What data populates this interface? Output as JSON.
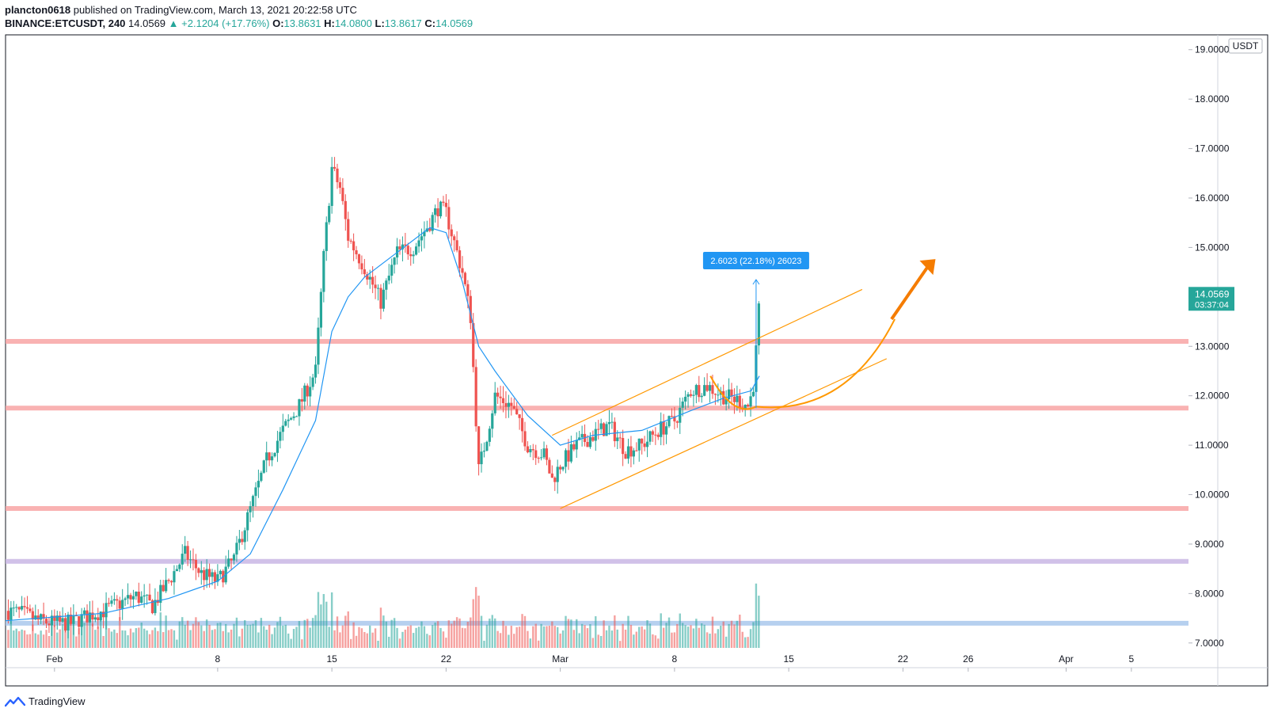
{
  "header": {
    "author": "plancton0618",
    "published_text": "published on TradingView.com, March 13, 2021 20:22:58 UTC",
    "symbol": "BINANCE:ETCUSDT, 240",
    "last": "14.0569",
    "change": "▲ +2.1204 (+17.76%)",
    "o_label": "O:",
    "o_value": "13.8631",
    "h_label": "H:",
    "h_value": "14.0800",
    "l_label": "L:",
    "l_value": "13.8617",
    "c_label": "C:",
    "c_value": "14.0569"
  },
  "colors": {
    "up": "#26a69a",
    "down": "#ef5350",
    "ma": "#2196f3",
    "channel": "#ff9800",
    "level": "#f8a5a5",
    "grid": "#e0e3eb"
  },
  "price_axis": {
    "currency": "USDT",
    "last_price": "14.0569",
    "countdown": "03:37:04"
  },
  "measure_label": "2.6023 (22.18%) 26023",
  "brand": "TradingView",
  "chart_data": {
    "type": "candlestick",
    "title": "",
    "ylim": [
      6.5,
      19.3
    ],
    "y_ticks": [
      7,
      8,
      9,
      10,
      11,
      12,
      13,
      14,
      15,
      16,
      17,
      18,
      19
    ],
    "y_tick_labels": [
      "7.0000",
      "8.0000",
      "9.0000",
      "10.0000",
      "11.0000",
      "12.0000",
      "13.0000",
      "14.0000",
      "15.0000",
      "16.0000",
      "17.0000",
      "18.0000",
      "19.0000"
    ],
    "x_tick_labels": [
      {
        "day": -3,
        "label": "Feb"
      },
      {
        "day": 7,
        "label": "8"
      },
      {
        "day": 14,
        "label": "15"
      },
      {
        "day": 21,
        "label": "22"
      },
      {
        "day": 28,
        "label": "Mar"
      },
      {
        "day": 35,
        "label": "8"
      },
      {
        "day": 42,
        "label": "15"
      },
      {
        "day": 49,
        "label": "22"
      },
      {
        "day": 53,
        "label": "26"
      },
      {
        "day": 59,
        "label": "Apr"
      },
      {
        "day": 63,
        "label": "5"
      }
    ],
    "x_range_days": [
      -6.0,
      66.5
    ],
    "price_path": [
      [
        -6.0,
        7.65
      ],
      [
        -5.0,
        7.6
      ],
      [
        -4.0,
        7.45
      ],
      [
        -3.0,
        7.4
      ],
      [
        -2.0,
        7.4
      ],
      [
        -1.0,
        7.55
      ],
      [
        0.0,
        7.65
      ],
      [
        1.0,
        7.8
      ],
      [
        2.0,
        7.95
      ],
      [
        3.0,
        7.75
      ],
      [
        4.0,
        8.25
      ],
      [
        5.0,
        8.8
      ],
      [
        6.0,
        8.4
      ],
      [
        7.0,
        8.25
      ],
      [
        8.0,
        8.7
      ],
      [
        9.0,
        9.7
      ],
      [
        10.0,
        10.7
      ],
      [
        11.0,
        11.3
      ],
      [
        12.0,
        11.8
      ],
      [
        13.0,
        12.5
      ],
      [
        13.5,
        14.8
      ],
      [
        14.0,
        16.6
      ],
      [
        14.5,
        16.2
      ],
      [
        15.0,
        15.2
      ],
      [
        16.0,
        14.6
      ],
      [
        17.0,
        13.9
      ],
      [
        18.0,
        14.9
      ],
      [
        19.0,
        15.0
      ],
      [
        20.0,
        15.5
      ],
      [
        20.5,
        15.8
      ],
      [
        21.0,
        15.7
      ],
      [
        22.0,
        14.5
      ],
      [
        22.5,
        13.6
      ],
      [
        23.0,
        10.5
      ],
      [
        23.5,
        11.2
      ],
      [
        24.0,
        12.0
      ],
      [
        25.0,
        11.8
      ],
      [
        26.0,
        11.0
      ],
      [
        27.0,
        10.8
      ],
      [
        27.5,
        10.3
      ],
      [
        28.0,
        10.6
      ],
      [
        29.0,
        11.0
      ],
      [
        30.0,
        11.2
      ],
      [
        31.0,
        11.4
      ],
      [
        32.0,
        10.9
      ],
      [
        33.0,
        11.0
      ],
      [
        34.0,
        11.3
      ],
      [
        35.0,
        11.5
      ],
      [
        36.0,
        12.1
      ],
      [
        37.0,
        12.2
      ],
      [
        38.0,
        12.0
      ],
      [
        39.0,
        11.9
      ],
      [
        39.5,
        11.8
      ],
      [
        39.8,
        12.1
      ],
      [
        40.0,
        12.9
      ],
      [
        40.2,
        14.06
      ]
    ],
    "ma_path": [
      [
        -6.0,
        7.45
      ],
      [
        0.0,
        7.6
      ],
      [
        4.0,
        7.9
      ],
      [
        7.0,
        8.25
      ],
      [
        9.0,
        8.8
      ],
      [
        11.0,
        10.1
      ],
      [
        13.0,
        11.5
      ],
      [
        14.0,
        13.3
      ],
      [
        15.0,
        14.0
      ],
      [
        16.0,
        14.4
      ],
      [
        18.0,
        14.9
      ],
      [
        20.0,
        15.4
      ],
      [
        21.0,
        15.3
      ],
      [
        22.0,
        14.3
      ],
      [
        23.0,
        13.0
      ],
      [
        24.0,
        12.5
      ],
      [
        26.0,
        11.6
      ],
      [
        28.0,
        11.0
      ],
      [
        30.0,
        11.2
      ],
      [
        33.0,
        11.3
      ],
      [
        36.0,
        11.7
      ],
      [
        38.0,
        11.95
      ],
      [
        39.7,
        12.1
      ],
      [
        40.2,
        12.4
      ]
    ],
    "volume_range": [
      0,
      100
    ],
    "horizontal_levels": [
      {
        "price": 13.1,
        "color": "#f8a5a5"
      },
      {
        "price": 11.75,
        "color": "#f8a5a5"
      },
      {
        "price": 9.72,
        "color": "#f8a5a5"
      },
      {
        "price": 8.65,
        "color": "#c9b6e4"
      },
      {
        "price": 7.4,
        "color": "#a9c8ec"
      }
    ],
    "channel": {
      "lower": [
        [
          28.0,
          9.72
        ],
        [
          48.0,
          12.75
        ]
      ],
      "upper": [
        [
          27.5,
          11.2
        ],
        [
          46.5,
          14.15
        ]
      ]
    },
    "measure": {
      "day": 40.0,
      "from": 11.75,
      "to": 14.35
    }
  }
}
